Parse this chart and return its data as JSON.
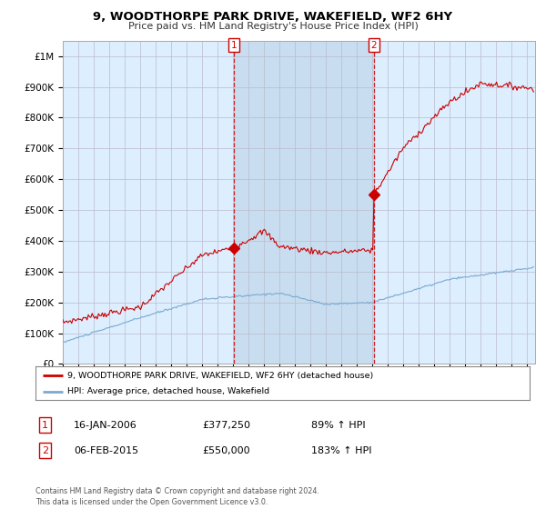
{
  "title": "9, WOODTHORPE PARK DRIVE, WAKEFIELD, WF2 6HY",
  "subtitle": "Price paid vs. HM Land Registry's House Price Index (HPI)",
  "ylabel_ticks": [
    "£0",
    "£100K",
    "£200K",
    "£300K",
    "£400K",
    "£500K",
    "£600K",
    "£700K",
    "£800K",
    "£900K",
    "£1M"
  ],
  "ytick_vals": [
    0,
    100000,
    200000,
    300000,
    400000,
    500000,
    600000,
    700000,
    800000,
    900000,
    1000000
  ],
  "ylim": [
    0,
    1050000
  ],
  "xlim_start": 1995.0,
  "xlim_end": 2025.5,
  "legend_line1": "9, WOODTHORPE PARK DRIVE, WAKEFIELD, WF2 6HY (detached house)",
  "legend_line2": "HPI: Average price, detached house, Wakefield",
  "annotation1_label": "1",
  "annotation1_date": "16-JAN-2006",
  "annotation1_price": "£377,250",
  "annotation1_hpi": "89% ↑ HPI",
  "annotation2_label": "2",
  "annotation2_date": "06-FEB-2015",
  "annotation2_price": "£550,000",
  "annotation2_hpi": "183% ↑ HPI",
  "sale1_x": 2006.04,
  "sale1_y": 377250,
  "sale2_x": 2015.09,
  "sale2_y": 550000,
  "red_line_color": "#cc0000",
  "blue_line_color": "#7aaad0",
  "plot_bg_color": "#ddeeff",
  "shade_color": "#c8ddf0",
  "grid_color": "#bbbbcc",
  "bg_color": "#ffffff",
  "footnote": "Contains HM Land Registry data © Crown copyright and database right 2024.\nThis data is licensed under the Open Government Licence v3.0."
}
